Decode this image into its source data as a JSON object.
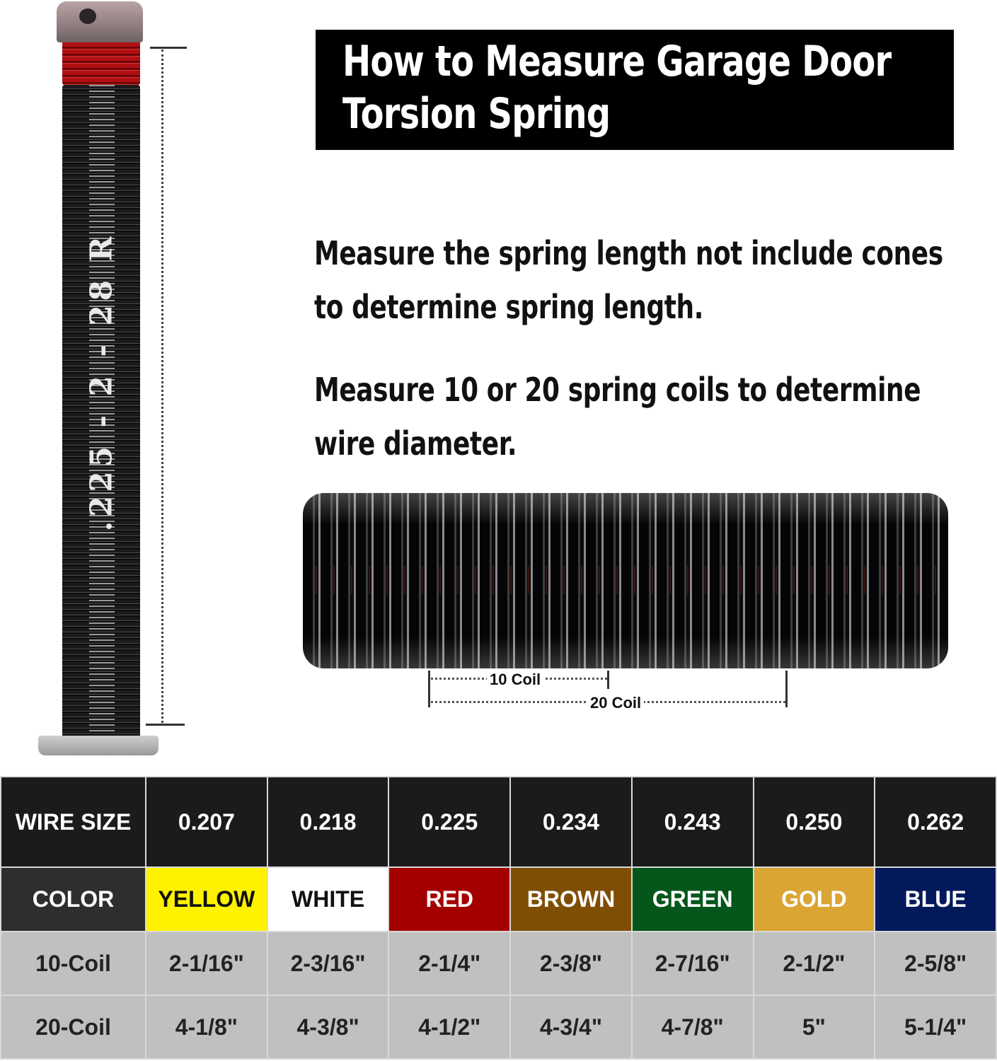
{
  "title": {
    "line1": "How to Measure Garage Door",
    "line2": "Torsion Spring"
  },
  "instructions": [
    {
      "line1": "Measure the spring length not include cones",
      "line2": "to determine spring length."
    },
    {
      "line1": "Measure 10 or 20 spring coils to determine",
      "line2": "wire diameter."
    }
  ],
  "spring_label": ".225 - 2 - 28 R",
  "coil_labels": {
    "ten": "10 Coil",
    "twenty": "20 Coil"
  },
  "table": {
    "rows": [
      {
        "label": "WIRE SIZE",
        "cells": [
          "0.207",
          "0.218",
          "0.225",
          "0.234",
          "0.243",
          "0.250",
          "0.262"
        ]
      },
      {
        "label": "COLOR",
        "cells": [
          "YELLOW",
          "WHITE",
          "RED",
          "BROWN",
          "GREEN",
          "GOLD",
          "BLUE"
        ]
      },
      {
        "label": "10-Coil",
        "cells": [
          "2-1/16\"",
          "2-3/16\"",
          "2-1/4\"",
          "2-3/8\"",
          "2-7/16\"",
          "2-1/2\"",
          "2-5/8\""
        ]
      },
      {
        "label": "20-Coil",
        "cells": [
          "4-1/8\"",
          "4-3/8\"",
          "4-1/2\"",
          "4-3/4\"",
          "4-7/8\"",
          "5\"",
          "5-1/4\""
        ]
      }
    ],
    "color_swatches": [
      "#fff200",
      "#ffffff",
      "#a50000",
      "#7f4e05",
      "#05561b",
      "#dba534",
      "#021a5b"
    ],
    "color_text": [
      "#111111",
      "#111111",
      "#ffffff",
      "#ffffff",
      "#ffffff",
      "#ffffff",
      "#ffffff"
    ],
    "color_header_bg": "#2e2e2e"
  }
}
